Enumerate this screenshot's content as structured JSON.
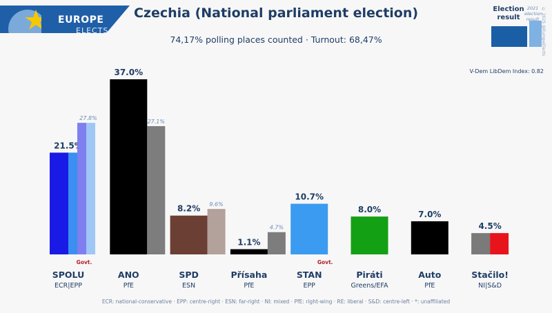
{
  "header": {
    "logo_line1": "EUROPE",
    "logo_line2": "ELECTS",
    "title": "Czechia (National parliament election)",
    "subtitle": "74,17% polling places counted · Turnout: 68,47%"
  },
  "legend": {
    "election_result": "Election result",
    "prev_label": "2021 election result"
  },
  "copyright": "© 2025 @EuropeElects",
  "vdem": "V-Dem LibDem Index: 0.82",
  "footnote": "ECR: national-conservative · EPP: centre-right · ESN: far-right · NI: mixed · PfE: right-wing · RE: liberal · S&D: centre-left · *: unaffiliated",
  "colors": {
    "title": "#1f3d66",
    "label_dark": "#1f3d66",
    "govt_red": "#b0232b",
    "prev_label": "#6b8bb5"
  },
  "chart_data": {
    "type": "bar",
    "title": "Czechia (National parliament election)",
    "ylim": [
      0,
      40
    ],
    "categories": [
      "SPOLU",
      "ANO",
      "SPD",
      "Přísaha",
      "STAN",
      "Piráti",
      "Auto",
      "Stačilo!"
    ],
    "groups": [
      "ECR|EPP",
      "PfE",
      "ESN",
      "PfE",
      "EPP",
      "Greens/EFA",
      "PfE",
      "NI|S&D"
    ],
    "govt": [
      true,
      false,
      false,
      false,
      true,
      false,
      false,
      false
    ],
    "govt_label": "Govt.",
    "series": [
      {
        "name": "Election result",
        "values": [
          21.5,
          37.0,
          8.2,
          1.1,
          10.7,
          8.0,
          7.0,
          4.5
        ],
        "labels": [
          "21.5%",
          "37.0%",
          "8.2%",
          "1.1%",
          "10.7%",
          "8.0%",
          "7.0%",
          "4.5%"
        ]
      },
      {
        "name": "2021 election result",
        "values": [
          27.8,
          27.1,
          9.6,
          4.7,
          null,
          null,
          null,
          null
        ],
        "labels": [
          "27.8%",
          "27.1%",
          "9.6%",
          "4.7%",
          "",
          "",
          "",
          ""
        ]
      }
    ],
    "current_colors": [
      [
        "#1a1ae6",
        "#3a8ff0"
      ],
      [
        "#000000"
      ],
      [
        "#6b3f34"
      ],
      [
        "#000000"
      ],
      [
        "#3a9bf0"
      ],
      [
        "#14a014"
      ],
      [
        "#000000"
      ],
      [
        "#7a7a7a",
        "#e8141c"
      ]
    ],
    "prev_colors": [
      [
        "#7f7ff0",
        "#9fc7f5"
      ],
      [
        "#7d7d7d"
      ],
      [
        "#b3a19b"
      ],
      [
        "#7d7d7d"
      ],
      null,
      null,
      null,
      null
    ]
  }
}
